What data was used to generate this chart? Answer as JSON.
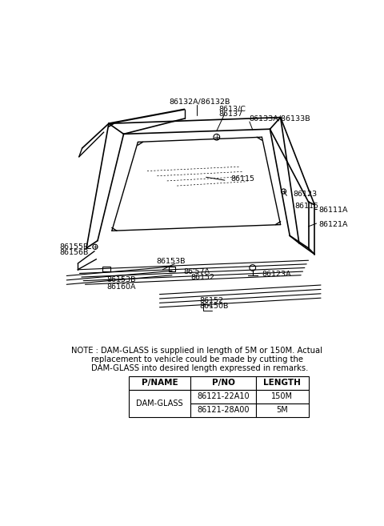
{
  "background_color": "#ffffff",
  "note_text_line1": "NOTE : DAM-GLASS is supplied in length of 5M or 150M. Actual",
  "note_text_line2": "        replacement to vehicle could be made by cutting the",
  "note_text_line3": "        DAM-GLASS into desired length expressed in remarks.",
  "table_headers": [
    "P/NAME",
    "P/NO",
    "LENGTH"
  ],
  "table_row1": [
    "DAM-GLASS",
    "86121-22A10",
    "150M"
  ],
  "table_row2": [
    "",
    "86121-28A00",
    "5M"
  ]
}
